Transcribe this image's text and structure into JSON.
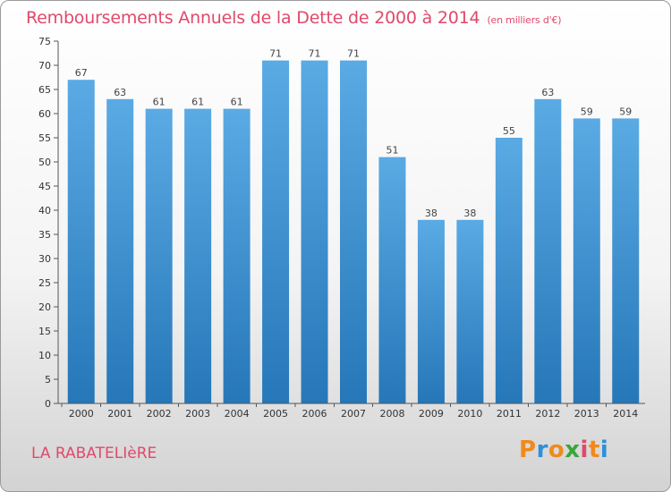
{
  "chart_data": {
    "type": "bar",
    "title": "Remboursements Annuels de la Dette de 2000 à 2014",
    "subtitle": "(en milliers d'€)",
    "categories": [
      "2000",
      "2001",
      "2002",
      "2003",
      "2004",
      "2005",
      "2006",
      "2007",
      "2008",
      "2009",
      "2010",
      "2011",
      "2012",
      "2013",
      "2014"
    ],
    "values": [
      67,
      63,
      61,
      61,
      61,
      71,
      71,
      71,
      51,
      38,
      38,
      55,
      63,
      59,
      59
    ],
    "ylim": [
      0,
      75
    ],
    "yticks": [
      0,
      5,
      10,
      15,
      20,
      25,
      30,
      35,
      40,
      45,
      50,
      55,
      60,
      65,
      70,
      75
    ],
    "xlabel": "",
    "ylabel": "",
    "grid": false,
    "bar_color_top": "#5aaae4",
    "bar_color_bottom": "#2677b8"
  },
  "footer": {
    "commune": "LA RABATELIèRE",
    "logo_letters": [
      "P",
      "r",
      "o",
      "x",
      "i",
      "t",
      "i"
    ],
    "logo_colors": [
      "#f08a1c",
      "#2f8fd8",
      "#f08a1c",
      "#3aa63a",
      "#e0496b",
      "#f08a1c",
      "#2f8fd8"
    ]
  },
  "colors": {
    "title": "#e0496b"
  }
}
